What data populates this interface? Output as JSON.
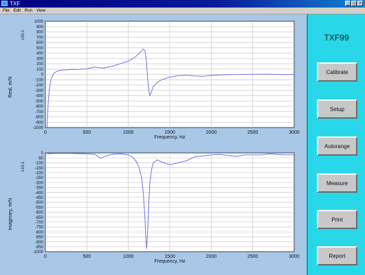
{
  "window": {
    "title": "TXF",
    "buttons": [
      "_",
      "□",
      "×"
    ]
  },
  "menu": {
    "items": [
      "File",
      "Edit",
      "Run",
      "View"
    ]
  },
  "sidebar": {
    "device": "TXF99",
    "buttons": [
      "Calibrate",
      "Setup",
      "Autorange",
      "Measure",
      "Print",
      "Report"
    ]
  },
  "colors": {
    "plot_bg": "#ffffff",
    "frame_bg": "#a9c8e8",
    "sidebar_bg": "#28d8e8",
    "trace": "#7070e0"
  },
  "chart_data": [
    {
      "type": "line",
      "name": "real",
      "xlabel": "Frequency, Hz",
      "ylabel": "Real, m/N",
      "yscale_label": "x10-1",
      "xlim": [
        0,
        3000
      ],
      "ylim": [
        -1000,
        1000
      ],
      "xticks": [
        0,
        500,
        1000,
        1500,
        2000,
        2500,
        3000
      ],
      "yticks": [
        1000,
        900,
        800,
        700,
        600,
        500,
        400,
        300,
        200,
        100,
        0,
        -100,
        -200,
        -300,
        -400,
        -500,
        -600,
        -700,
        -800,
        -900,
        -1000
      ],
      "ytick_labels": [
        "1000",
        "900",
        "800",
        "700",
        "600",
        "500",
        "400",
        "300",
        "200",
        "100",
        "0",
        "-100",
        "-200",
        "-300",
        "-400",
        "-500",
        "-600",
        "-700",
        "-800",
        "-900",
        "-1000"
      ],
      "grid": true,
      "series": [
        {
          "x": [
            20,
            35,
            50,
            70,
            100,
            140,
            200,
            300,
            400,
            500,
            600,
            650,
            700,
            800,
            900,
            1000,
            1050,
            1100,
            1150,
            1180,
            1200,
            1215,
            1230,
            1245,
            1260,
            1280,
            1300,
            1350,
            1400,
            1500,
            1600,
            1700,
            1800,
            1900,
            2000,
            2100,
            2200,
            2400,
            2600,
            2800,
            2900,
            3000
          ],
          "y": [
            -1000,
            -500,
            -250,
            -80,
            20,
            60,
            80,
            90,
            95,
            105,
            140,
            125,
            120,
            150,
            200,
            250,
            290,
            350,
            430,
            480,
            450,
            300,
            0,
            -280,
            -400,
            -320,
            -230,
            -150,
            -100,
            -50,
            -25,
            -15,
            -30,
            -35,
            -20,
            -10,
            -5,
            0,
            5,
            0,
            -5,
            0
          ]
        }
      ]
    },
    {
      "type": "line",
      "name": "imaginary",
      "xlabel": "Frequency, Hz",
      "ylabel": "Imaginary, m/N",
      "yscale_label": "x10-1",
      "xlim": [
        0,
        3000
      ],
      "ylim": [
        -1000,
        0
      ],
      "xticks": [
        0,
        500,
        1000,
        1500,
        2000,
        2500,
        3000
      ],
      "yticks": [
        0,
        -50,
        -100,
        -150,
        -200,
        -250,
        -300,
        -350,
        -400,
        -450,
        -500,
        -550,
        -600,
        -650,
        -700,
        -750,
        -800,
        -850,
        -900,
        -950,
        -1000
      ],
      "ytick_labels": [
        "0",
        "-50",
        "-100",
        "-150",
        "-200",
        "-250",
        "-300",
        "-350",
        "-400",
        "-450",
        "-500",
        "-550",
        "-600",
        "-650",
        "-700",
        "-750",
        "-800",
        "-850",
        "-900",
        "-950",
        "-1000"
      ],
      "grid": true,
      "series": [
        {
          "x": [
            20,
            100,
            300,
            500,
            600,
            640,
            670,
            700,
            750,
            800,
            900,
            1000,
            1050,
            1100,
            1130,
            1160,
            1180,
            1200,
            1210,
            1220,
            1230,
            1245,
            1260,
            1280,
            1300,
            1350,
            1400,
            1500,
            1600,
            1700,
            1800,
            1900,
            2000,
            2100,
            2200,
            2300,
            2400,
            2500,
            2600,
            2700,
            2800,
            2900,
            3000
          ],
          "y": [
            -10,
            -5,
            -5,
            -10,
            -15,
            -40,
            -55,
            -40,
            -25,
            -15,
            -10,
            -20,
            -40,
            -90,
            -150,
            -250,
            -400,
            -650,
            -850,
            -970,
            -860,
            -550,
            -300,
            -170,
            -100,
            -70,
            -90,
            -120,
            -100,
            -80,
            -40,
            -30,
            -20,
            -15,
            -25,
            -35,
            -20,
            -20,
            -20,
            -10,
            -15,
            -20,
            -20
          ]
        }
      ]
    }
  ]
}
